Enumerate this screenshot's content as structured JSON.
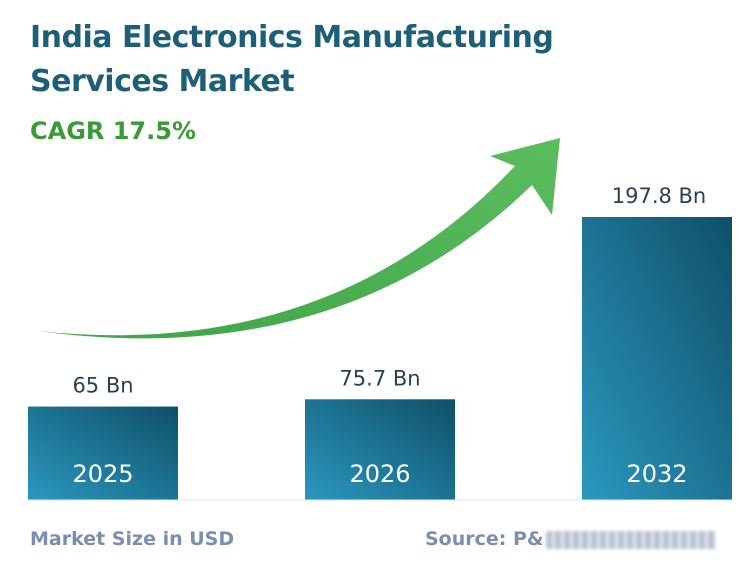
{
  "chart_data": {
    "type": "bar",
    "title": "India Electronics Manufacturing Services Market",
    "subtitle": "CAGR 17.5%",
    "categories": [
      "2025",
      "2026",
      "2032"
    ],
    "values": [
      65,
      75.7,
      197.8
    ],
    "value_labels": [
      "65 Bn",
      "75.7 Bn",
      "197.8 Bn"
    ],
    "unit": "Bn",
    "xlabel": "",
    "ylabel": "Market Size in USD",
    "source": "Source: P&",
    "colors": {
      "bar": "#1a6f8f",
      "title": "#1d5f77",
      "cagr": "#3a9a35",
      "arrow": "#4caf50",
      "footer": "#7a8fb0"
    }
  }
}
